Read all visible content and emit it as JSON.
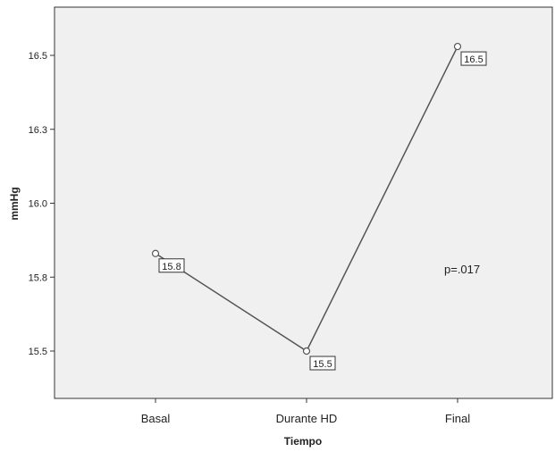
{
  "chart_data": {
    "type": "line",
    "title": "",
    "xlabel": "Tiempo",
    "ylabel": "mmHg",
    "categories": [
      "Basal",
      "Durante HD",
      "Final"
    ],
    "values": [
      15.83,
      15.5,
      16.53
    ],
    "data_labels": [
      "15.8",
      "15.5",
      "16.5"
    ],
    "y_ticks": [
      15.5,
      15.75,
      16.0,
      16.25,
      16.5
    ],
    "y_tick_labels": [
      "15.5",
      "15.8",
      "16.0",
      "16.3",
      "16.5"
    ],
    "ylim": [
      15.3,
      16.65
    ],
    "annotation": "p=.017",
    "grid": false,
    "colors": {
      "plot_background": "#f0f0f0",
      "line": "#555555",
      "marker_fill": "#ffffff",
      "axis": "#333333"
    }
  }
}
